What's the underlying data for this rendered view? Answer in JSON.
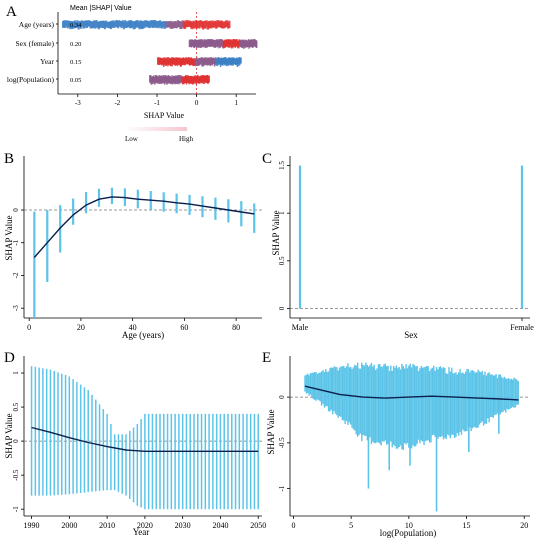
{
  "panels": {
    "A": {
      "letter": "A",
      "header": "Mean |SHAP| Value",
      "xlabel": "SHAP Value",
      "legend": {
        "low": "Low",
        "high": "High"
      }
    },
    "B": {
      "letter": "B",
      "xlabel": "Age (years)",
      "ylabel": "SHAP Value"
    },
    "C": {
      "letter": "C",
      "xlabel": "Sex",
      "ylabel": "SHAP Value"
    },
    "D": {
      "letter": "D",
      "xlabel": "Year",
      "ylabel": "SHAP Value"
    },
    "E": {
      "letter": "E",
      "xlabel": "log(Population)",
      "ylabel": "SHAP Value"
    }
  },
  "colors": {
    "low": "#3b7fc4",
    "high": "#e03131",
    "mid": "#8c5a8c",
    "dependence": "#5bc4e8",
    "trend": "#0b1f4d",
    "axis": "#000000",
    "reference": "#777777"
  },
  "chart_data": [
    {
      "panel": "A",
      "type": "scatter",
      "subtype": "beeswarm",
      "xlabel": "SHAP Value",
      "xlim": [
        -3.5,
        1.5
      ],
      "xticks": [
        "-3",
        "-2",
        "-1",
        "0",
        "1"
      ],
      "features": [
        {
          "name": "Age (years)",
          "mean_abs_shap": "0.34",
          "range": [
            -3.4,
            0.8
          ]
        },
        {
          "name": "Sex (female)",
          "mean_abs_shap": "0.20",
          "range": [
            -0.2,
            1.5
          ]
        },
        {
          "name": "Year",
          "mean_abs_shap": "0.15",
          "range": [
            -1.0,
            1.1
          ]
        },
        {
          "name": "log(Population)",
          "mean_abs_shap": "0.05",
          "range": [
            -1.2,
            0.3
          ]
        }
      ],
      "legend": "colour bar Low to High, below axis"
    },
    {
      "panel": "B",
      "type": "scatter",
      "subtype": "dependence",
      "xlabel": "Age (years)",
      "ylabel": "SHAP Value",
      "xlim": [
        -2,
        90
      ],
      "ylim": [
        -3.3,
        1.65
      ],
      "xticks": [
        "0",
        "20",
        "40",
        "60",
        "80"
      ],
      "yticks": [
        "-3",
        "-2",
        "-1",
        "0"
      ],
      "x": [
        2,
        7,
        12,
        17,
        22,
        27,
        32,
        37,
        42,
        47,
        52,
        57,
        62,
        67,
        72,
        77,
        82,
        87
      ],
      "ymin": [
        -3.3,
        -2.2,
        -1.3,
        -0.45,
        -0.1,
        0.1,
        0.18,
        0.12,
        0.05,
        0.0,
        -0.05,
        -0.1,
        -0.15,
        -0.22,
        -0.3,
        -0.38,
        -0.5,
        -0.7
      ],
      "ymax": [
        -0.05,
        0.0,
        0.15,
        0.35,
        0.55,
        0.65,
        0.68,
        0.66,
        0.62,
        0.58,
        0.54,
        0.5,
        0.46,
        0.42,
        0.38,
        0.33,
        0.27,
        0.2
      ],
      "trend_x": [
        2,
        7,
        12,
        17,
        22,
        27,
        32,
        37,
        42,
        47,
        52,
        57,
        62,
        67,
        72,
        77,
        82,
        87
      ],
      "trend_y": [
        -1.45,
        -1.0,
        -0.55,
        -0.15,
        0.15,
        0.33,
        0.4,
        0.38,
        0.33,
        0.3,
        0.27,
        0.22,
        0.18,
        0.12,
        0.06,
        0.0,
        -0.06,
        -0.12
      ]
    },
    {
      "panel": "C",
      "type": "scatter",
      "subtype": "dependence",
      "xlabel": "Sex",
      "ylabel": "SHAP Value",
      "categories": [
        "Male",
        "Female"
      ],
      "ylim": [
        -0.1,
        1.6
      ],
      "yticks": [
        "0",
        "0.5",
        "1",
        "1.5"
      ],
      "ranges": [
        [
          0.0,
          1.5
        ],
        [
          0.0,
          1.5
        ]
      ]
    },
    {
      "panel": "D",
      "type": "scatter",
      "subtype": "dependence",
      "xlabel": "Year",
      "ylabel": "SHAP Value",
      "xlim": [
        1988,
        2051
      ],
      "ylim": [
        -1.1,
        1.25
      ],
      "xticks": [
        "1990",
        "2000",
        "2010",
        "2020",
        "2030",
        "2040",
        "2050"
      ],
      "yticks": [
        "-1",
        "-0.5",
        "0",
        "0.5",
        "1"
      ],
      "x_start": 1990,
      "x_end": 2050,
      "envelope_x": [
        1990,
        1995,
        2000,
        2005,
        2010,
        2012,
        2015,
        2018,
        2020,
        2050
      ],
      "envelope_min": [
        -0.8,
        -0.8,
        -0.78,
        -0.75,
        -0.72,
        -0.72,
        -0.8,
        -0.95,
        -1.0,
        -1.0
      ],
      "envelope_max": [
        1.1,
        1.05,
        0.95,
        0.75,
        0.4,
        0.1,
        0.1,
        0.25,
        0.4,
        0.4
      ],
      "trend_x": [
        1990,
        1995,
        2000,
        2005,
        2010,
        2015,
        2020,
        2025,
        2050
      ],
      "trend_y": [
        0.2,
        0.13,
        0.05,
        -0.02,
        -0.08,
        -0.13,
        -0.15,
        -0.15,
        -0.15
      ]
    },
    {
      "panel": "E",
      "type": "scatter",
      "subtype": "dependence",
      "xlabel": "log(Population)",
      "ylabel": "SHAP Value",
      "xlim": [
        -0.3,
        20.5
      ],
      "ylim": [
        -1.3,
        0.45
      ],
      "xticks": [
        "0",
        "5",
        "10",
        "15",
        "20"
      ],
      "yticks": [
        "-1",
        "-0.5",
        "0"
      ],
      "cloud_x": [
        1,
        3,
        5,
        6,
        8,
        10,
        12,
        14,
        16,
        18,
        19.5
      ],
      "cloud_min": [
        0.05,
        -0.15,
        -0.35,
        -0.5,
        -0.55,
        -0.6,
        -0.5,
        -0.45,
        -0.35,
        -0.2,
        -0.1
      ],
      "cloud_max": [
        0.25,
        0.32,
        0.38,
        0.38,
        0.38,
        0.38,
        0.36,
        0.32,
        0.3,
        0.25,
        0.2
      ],
      "spikes": [
        [
          6.5,
          -1.0
        ],
        [
          8.3,
          -0.8
        ],
        [
          10.1,
          -0.75
        ],
        [
          12.4,
          -1.25
        ],
        [
          15.2,
          -0.6
        ],
        [
          17.8,
          -0.4
        ]
      ],
      "trend_x": [
        1,
        2,
        4,
        6,
        8,
        10,
        12,
        14,
        16,
        18,
        19.5
      ],
      "trend_y": [
        0.12,
        0.09,
        0.03,
        0.0,
        -0.01,
        0.0,
        0.01,
        0.0,
        -0.01,
        -0.02,
        -0.03
      ]
    }
  ]
}
